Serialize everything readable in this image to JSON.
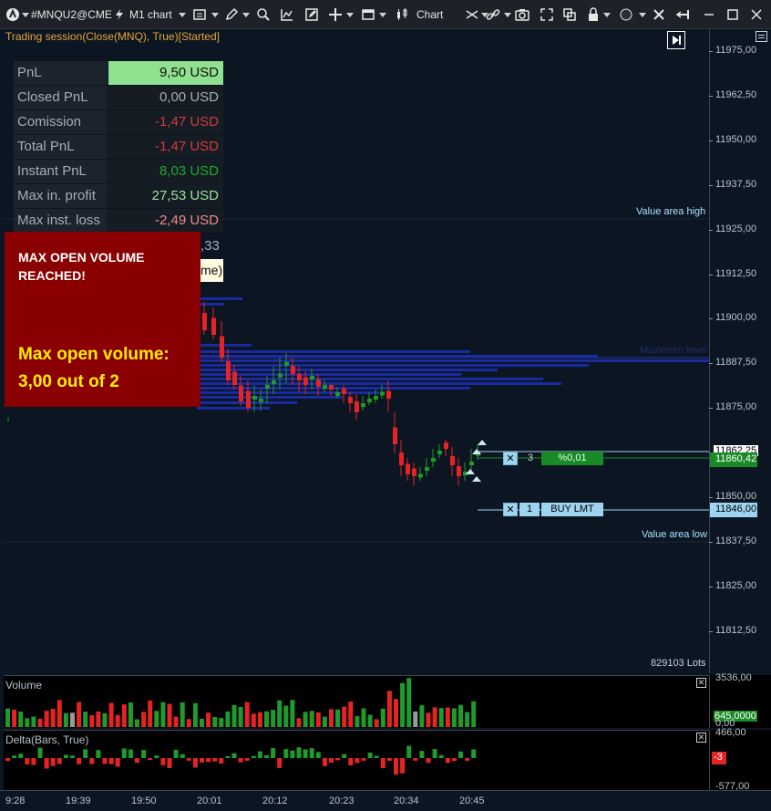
{
  "toolbar": {
    "symbol": "#MNQU2@CME",
    "timeframe": "M1 chart",
    "chart_label": "Chart"
  },
  "session": {
    "label": "Trading session(Close(MNQ), True)[Started]"
  },
  "pnl": {
    "rows": [
      {
        "label": "PnL",
        "value": "9,50 USD",
        "color": "#111111",
        "bg": "#8fe08f"
      },
      {
        "label": "Closed PnL",
        "value": "0,00 USD",
        "color": "#a6adb5",
        "bg": "#151c24"
      },
      {
        "label": "Comission",
        "value": "-1,47 USD",
        "color": "#d23b3b",
        "bg": "#151c24"
      },
      {
        "label": "Total PnL",
        "value": "-1,47 USD",
        "color": "#d23b3b",
        "bg": "#151c24"
      },
      {
        "label": "Instant PnL",
        "value": "8,03 USD",
        "color": "#1fa82b",
        "bg": "#151c24"
      },
      {
        "label": "Max in. profit",
        "value": "27,53 USD",
        "color": "#9be39b",
        "bg": "#151c24"
      },
      {
        "label": "Max inst. loss",
        "value": "-2,49 USD",
        "color": "#f08a8a",
        "bg": "#151c24"
      }
    ],
    "partial_value": ",33",
    "partial_label": "me)"
  },
  "alert": {
    "title": "MAX OPEN VOLUME REACHED!",
    "line1": "Max open volume:",
    "line2": "3,00 out of 2"
  },
  "chart": {
    "value_area_high": "Value area high",
    "value_area_low": "Value area low",
    "max_level": "Maximum level",
    "lots": "829103 Lots",
    "price_ticks": [
      "11975,00",
      "11962,50",
      "11950,00",
      "11937,50",
      "11925,00",
      "11912,50",
      "11900,00",
      "11887,50",
      "11875,00",
      "11862,50",
      "11850,00",
      "11837,50",
      "11825,00",
      "11812,50"
    ],
    "last_price": "11860,42",
    "cut_price": "11862,25",
    "limit_price": "11846,00",
    "position": {
      "qty": "3",
      "pnl": "%0,01"
    },
    "order": {
      "qty": "1",
      "type": "BUY LMT"
    },
    "colors": {
      "up": "#1f9a2b",
      "down": "#e52323",
      "profile": "#1a2aa0",
      "grid": "#182636"
    }
  },
  "volume": {
    "title": "Volume",
    "axis_top": "3536,00",
    "axis_bottom": "0,00",
    "current": "645,0000"
  },
  "delta": {
    "title": "Delta(Bars, True)",
    "axis_top": "466,00",
    "axis_bottom": "-577,00",
    "current": "-3"
  },
  "time_ticks": [
    "9:28",
    "19:39",
    "19:50",
    "20:01",
    "20:12",
    "20:23",
    "20:34",
    "20:45"
  ]
}
